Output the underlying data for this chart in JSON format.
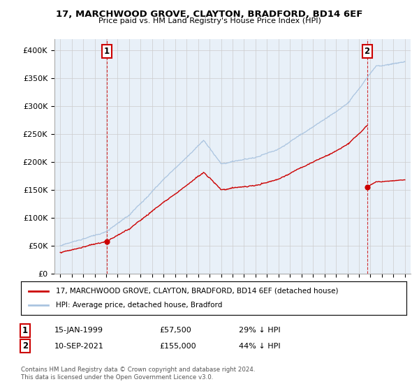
{
  "title": "17, MARCHWOOD GROVE, CLAYTON, BRADFORD, BD14 6EF",
  "subtitle": "Price paid vs. HM Land Registry's House Price Index (HPI)",
  "legend_label_red": "17, MARCHWOOD GROVE, CLAYTON, BRADFORD, BD14 6EF (detached house)",
  "legend_label_blue": "HPI: Average price, detached house, Bradford",
  "purchase1_date": "15-JAN-1999",
  "purchase1_price": 57500,
  "purchase1_hpi": "29% ↓ HPI",
  "purchase2_date": "10-SEP-2021",
  "purchase2_price": 155000,
  "purchase2_hpi": "44% ↓ HPI",
  "footnote": "Contains HM Land Registry data © Crown copyright and database right 2024.\nThis data is licensed under the Open Government Licence v3.0.",
  "ylim": [
    0,
    420000
  ],
  "yticks": [
    0,
    50000,
    100000,
    150000,
    200000,
    250000,
    300000,
    350000,
    400000
  ],
  "background_color": "#ffffff",
  "grid_color": "#cccccc",
  "red_color": "#cc0000",
  "blue_color": "#aac4e0",
  "p1_year": 1999.04,
  "p2_year": 2021.71,
  "xlim_left": 1994.5,
  "xlim_right": 2025.5
}
